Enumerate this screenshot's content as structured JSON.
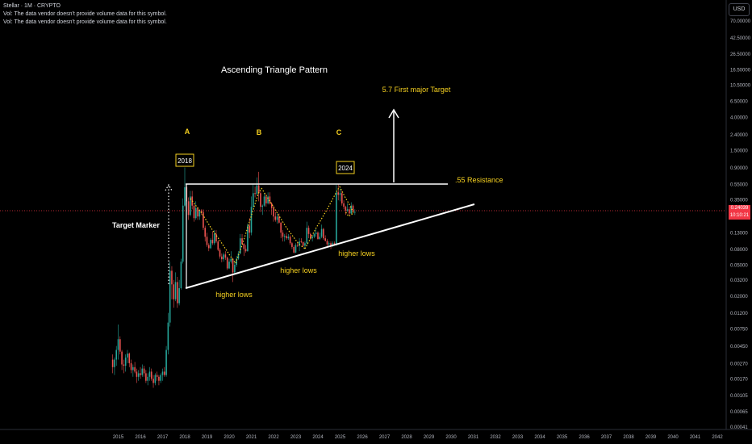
{
  "header": {
    "symbol_line": "Stellar · 1M · CRYPTO",
    "vol_note_1": "Vol: The data vendor doesn't provide volume data for this symbol.",
    "vol_note_2": "Vol: The data vendor doesn't provide volume data for this symbol."
  },
  "price_scale": {
    "currency": "USD",
    "ticks": [
      "70.00000",
      "42.50000",
      "26.50000",
      "16.50000",
      "10.50000",
      "6.50000",
      "4.00000",
      "2.40000",
      "1.50000",
      "0.90000",
      "0.55000",
      "0.35000",
      "0.13000",
      "0.08000",
      "0.05000",
      "0.03200",
      "0.02000",
      "0.01200",
      "0.00750",
      "0.00450",
      "0.00270",
      "0.00170",
      "0.00105",
      "0.00065",
      "0.00041"
    ],
    "current_price": "0.24039",
    "countdown": "10:10:21"
  },
  "time_axis": {
    "years": [
      "2015",
      "2016",
      "2017",
      "2018",
      "2019",
      "2020",
      "2021",
      "2022",
      "2023",
      "2024",
      "2025",
      "2026",
      "2027",
      "2028",
      "2029",
      "2030",
      "2031",
      "2032",
      "2033",
      "2034",
      "2035",
      "2036",
      "2037",
      "2038",
      "2039",
      "2040",
      "2041",
      "2042"
    ]
  },
  "annotations": {
    "title": "Ascending Triangle Pattern",
    "target_label": "5.7 First major Target",
    "resistance_label": ".55 Resistance",
    "target_marker_label": "Target Marker",
    "peak_a": "A",
    "peak_b": "B",
    "peak_c": "C",
    "year_box_1": "2018",
    "year_box_2": "2024",
    "higher_lows_1": "higher lows",
    "higher_lows_2": "higher lows",
    "higher_lows_3": "higher lows"
  },
  "colors": {
    "up": "#26a69a",
    "down": "#ef5350",
    "annotation_text": "#f5d020",
    "trendline": "#ffffff",
    "price_line": "#f23645"
  },
  "chart_data": {
    "type": "candlestick",
    "symbol": "Stellar",
    "interval": "1M",
    "y_scale": "log",
    "ylim": [
      0.00041,
      70
    ],
    "x_range": [
      "2015-01",
      "2042-12"
    ],
    "current_price": 0.24039,
    "trendlines": [
      {
        "label": ".55 Resistance",
        "from": {
          "x": "2018-01",
          "y": 0.55
        },
        "to": {
          "x": "2031-01",
          "y": 0.55
        }
      },
      {
        "label": "higher lows",
        "from": {
          "x": "2018-01",
          "y": 0.025
        },
        "to": {
          "x": "2031-01",
          "y": 0.38
        }
      }
    ],
    "peaks": [
      {
        "label": "A",
        "x": "2018-01",
        "y": 0.9
      },
      {
        "label": "B",
        "x": "2021-05",
        "y": 0.79
      },
      {
        "label": "C",
        "x": "2024-12",
        "y": 0.55
      }
    ],
    "target": {
      "label": "5.7 First major Target",
      "y": 5.7
    },
    "candles": [
      {
        "x": "2014-10",
        "o": 0.003,
        "h": 0.0035,
        "l": 0.002,
        "c": 0.0024
      },
      {
        "x": "2014-11",
        "o": 0.0024,
        "h": 0.0032,
        "l": 0.0019,
        "c": 0.003
      },
      {
        "x": "2014-12",
        "o": 0.003,
        "h": 0.0045,
        "l": 0.0025,
        "c": 0.004
      },
      {
        "x": "2015-01",
        "o": 0.004,
        "h": 0.0085,
        "l": 0.003,
        "c": 0.0055
      },
      {
        "x": "2015-02",
        "o": 0.0055,
        "h": 0.006,
        "l": 0.0035,
        "c": 0.0038
      },
      {
        "x": "2015-03",
        "o": 0.0038,
        "h": 0.004,
        "l": 0.0022,
        "c": 0.0026
      },
      {
        "x": "2015-04",
        "o": 0.0026,
        "h": 0.003,
        "l": 0.002,
        "c": 0.0025
      },
      {
        "x": "2015-05",
        "o": 0.0025,
        "h": 0.0035,
        "l": 0.0021,
        "c": 0.0032
      },
      {
        "x": "2015-06",
        "o": 0.0032,
        "h": 0.004,
        "l": 0.0027,
        "c": 0.0036
      },
      {
        "x": "2015-07",
        "o": 0.0036,
        "h": 0.0037,
        "l": 0.0024,
        "c": 0.0027
      },
      {
        "x": "2015-08",
        "o": 0.0027,
        "h": 0.003,
        "l": 0.002,
        "c": 0.0022
      },
      {
        "x": "2015-09",
        "o": 0.0022,
        "h": 0.0026,
        "l": 0.0018,
        "c": 0.0024
      },
      {
        "x": "2015-10",
        "o": 0.0024,
        "h": 0.0028,
        "l": 0.002,
        "c": 0.0021
      },
      {
        "x": "2015-11",
        "o": 0.0021,
        "h": 0.0023,
        "l": 0.0015,
        "c": 0.0018
      },
      {
        "x": "2015-12",
        "o": 0.0018,
        "h": 0.0022,
        "l": 0.0016,
        "c": 0.002
      },
      {
        "x": "2016-01",
        "o": 0.002,
        "h": 0.0024,
        "l": 0.0017,
        "c": 0.0019
      },
      {
        "x": "2016-02",
        "o": 0.0019,
        "h": 0.0026,
        "l": 0.0018,
        "c": 0.0023
      },
      {
        "x": "2016-03",
        "o": 0.0023,
        "h": 0.0025,
        "l": 0.0018,
        "c": 0.002
      },
      {
        "x": "2016-04",
        "o": 0.002,
        "h": 0.0022,
        "l": 0.0015,
        "c": 0.0016
      },
      {
        "x": "2016-05",
        "o": 0.0016,
        "h": 0.002,
        "l": 0.0014,
        "c": 0.0018
      },
      {
        "x": "2016-06",
        "o": 0.0018,
        "h": 0.0024,
        "l": 0.0016,
        "c": 0.0021
      },
      {
        "x": "2016-07",
        "o": 0.0021,
        "h": 0.0023,
        "l": 0.0016,
        "c": 0.0017
      },
      {
        "x": "2016-08",
        "o": 0.0017,
        "h": 0.0019,
        "l": 0.0013,
        "c": 0.0015
      },
      {
        "x": "2016-09",
        "o": 0.0015,
        "h": 0.002,
        "l": 0.0014,
        "c": 0.0019
      },
      {
        "x": "2016-10",
        "o": 0.0019,
        "h": 0.0021,
        "l": 0.0016,
        "c": 0.0018
      },
      {
        "x": "2016-11",
        "o": 0.0018,
        "h": 0.0019,
        "l": 0.0014,
        "c": 0.0016
      },
      {
        "x": "2016-12",
        "o": 0.0016,
        "h": 0.002,
        "l": 0.0015,
        "c": 0.0019
      },
      {
        "x": "2017-01",
        "o": 0.0019,
        "h": 0.0023,
        "l": 0.0016,
        "c": 0.0021
      },
      {
        "x": "2017-02",
        "o": 0.0021,
        "h": 0.0024,
        "l": 0.0018,
        "c": 0.0019
      },
      {
        "x": "2017-03",
        "o": 0.0019,
        "h": 0.0045,
        "l": 0.0018,
        "c": 0.004
      },
      {
        "x": "2017-04",
        "o": 0.004,
        "h": 0.012,
        "l": 0.0035,
        "c": 0.009
      },
      {
        "x": "2017-05",
        "o": 0.009,
        "h": 0.055,
        "l": 0.008,
        "c": 0.042
      },
      {
        "x": "2017-06",
        "o": 0.042,
        "h": 0.048,
        "l": 0.018,
        "c": 0.028
      },
      {
        "x": "2017-07",
        "o": 0.028,
        "h": 0.032,
        "l": 0.014,
        "c": 0.018
      },
      {
        "x": "2017-08",
        "o": 0.018,
        "h": 0.04,
        "l": 0.017,
        "c": 0.03
      },
      {
        "x": "2017-09",
        "o": 0.03,
        "h": 0.035,
        "l": 0.014,
        "c": 0.016
      },
      {
        "x": "2017-10",
        "o": 0.016,
        "h": 0.032,
        "l": 0.015,
        "c": 0.025
      },
      {
        "x": "2017-11",
        "o": 0.025,
        "h": 0.06,
        "l": 0.024,
        "c": 0.055
      },
      {
        "x": "2017-12",
        "o": 0.055,
        "h": 0.36,
        "l": 0.052,
        "c": 0.29
      },
      {
        "x": "2018-01",
        "o": 0.29,
        "h": 0.9,
        "l": 0.28,
        "c": 0.5
      },
      {
        "x": "2018-02",
        "o": 0.5,
        "h": 0.54,
        "l": 0.3,
        "c": 0.33
      },
      {
        "x": "2018-03",
        "o": 0.33,
        "h": 0.37,
        "l": 0.19,
        "c": 0.22
      },
      {
        "x": "2018-04",
        "o": 0.22,
        "h": 0.45,
        "l": 0.21,
        "c": 0.38
      },
      {
        "x": "2018-05",
        "o": 0.38,
        "h": 0.45,
        "l": 0.26,
        "c": 0.29
      },
      {
        "x": "2018-06",
        "o": 0.29,
        "h": 0.31,
        "l": 0.18,
        "c": 0.2
      },
      {
        "x": "2018-07",
        "o": 0.2,
        "h": 0.33,
        "l": 0.19,
        "c": 0.27
      },
      {
        "x": "2018-08",
        "o": 0.27,
        "h": 0.28,
        "l": 0.19,
        "c": 0.21
      },
      {
        "x": "2018-09",
        "o": 0.21,
        "h": 0.26,
        "l": 0.19,
        "c": 0.25
      },
      {
        "x": "2018-10",
        "o": 0.25,
        "h": 0.26,
        "l": 0.22,
        "c": 0.24
      },
      {
        "x": "2018-11",
        "o": 0.24,
        "h": 0.26,
        "l": 0.14,
        "c": 0.15
      },
      {
        "x": "2018-12",
        "o": 0.15,
        "h": 0.16,
        "l": 0.1,
        "c": 0.115
      },
      {
        "x": "2019-01",
        "o": 0.115,
        "h": 0.13,
        "l": 0.085,
        "c": 0.09
      },
      {
        "x": "2019-02",
        "o": 0.09,
        "h": 0.095,
        "l": 0.075,
        "c": 0.082
      },
      {
        "x": "2019-03",
        "o": 0.082,
        "h": 0.11,
        "l": 0.08,
        "c": 0.105
      },
      {
        "x": "2019-04",
        "o": 0.105,
        "h": 0.135,
        "l": 0.09,
        "c": 0.095
      },
      {
        "x": "2019-05",
        "o": 0.095,
        "h": 0.14,
        "l": 0.09,
        "c": 0.125
      },
      {
        "x": "2019-06",
        "o": 0.125,
        "h": 0.14,
        "l": 0.095,
        "c": 0.1
      },
      {
        "x": "2019-07",
        "o": 0.1,
        "h": 0.105,
        "l": 0.075,
        "c": 0.078
      },
      {
        "x": "2019-08",
        "o": 0.078,
        "h": 0.082,
        "l": 0.06,
        "c": 0.064
      },
      {
        "x": "2019-09",
        "o": 0.064,
        "h": 0.07,
        "l": 0.054,
        "c": 0.059
      },
      {
        "x": "2019-10",
        "o": 0.059,
        "h": 0.072,
        "l": 0.055,
        "c": 0.068
      },
      {
        "x": "2019-11",
        "o": 0.068,
        "h": 0.075,
        "l": 0.058,
        "c": 0.062
      },
      {
        "x": "2019-12",
        "o": 0.062,
        "h": 0.064,
        "l": 0.043,
        "c": 0.045
      },
      {
        "x": "2020-01",
        "o": 0.045,
        "h": 0.06,
        "l": 0.044,
        "c": 0.055
      },
      {
        "x": "2020-02",
        "o": 0.055,
        "h": 0.075,
        "l": 0.052,
        "c": 0.06
      },
      {
        "x": "2020-03",
        "o": 0.06,
        "h": 0.062,
        "l": 0.03,
        "c": 0.04
      },
      {
        "x": "2020-04",
        "o": 0.04,
        "h": 0.055,
        "l": 0.038,
        "c": 0.05
      },
      {
        "x": "2020-05",
        "o": 0.05,
        "h": 0.065,
        "l": 0.047,
        "c": 0.06
      },
      {
        "x": "2020-06",
        "o": 0.06,
        "h": 0.075,
        "l": 0.058,
        "c": 0.07
      },
      {
        "x": "2020-07",
        "o": 0.07,
        "h": 0.125,
        "l": 0.068,
        "c": 0.11
      },
      {
        "x": "2020-08",
        "o": 0.11,
        "h": 0.125,
        "l": 0.09,
        "c": 0.093
      },
      {
        "x": "2020-09",
        "o": 0.093,
        "h": 0.095,
        "l": 0.065,
        "c": 0.08
      },
      {
        "x": "2020-10",
        "o": 0.08,
        "h": 0.09,
        "l": 0.072,
        "c": 0.075
      },
      {
        "x": "2020-11",
        "o": 0.075,
        "h": 0.17,
        "l": 0.074,
        "c": 0.16
      },
      {
        "x": "2020-12",
        "o": 0.16,
        "h": 0.2,
        "l": 0.11,
        "c": 0.13
      },
      {
        "x": "2021-01",
        "o": 0.13,
        "h": 0.38,
        "l": 0.12,
        "c": 0.28
      },
      {
        "x": "2021-02",
        "o": 0.28,
        "h": 0.54,
        "l": 0.27,
        "c": 0.42
      },
      {
        "x": "2021-03",
        "o": 0.42,
        "h": 0.51,
        "l": 0.37,
        "c": 0.41
      },
      {
        "x": "2021-04",
        "o": 0.41,
        "h": 0.67,
        "l": 0.39,
        "c": 0.53
      },
      {
        "x": "2021-05",
        "o": 0.53,
        "h": 0.79,
        "l": 0.33,
        "c": 0.42
      },
      {
        "x": "2021-06",
        "o": 0.42,
        "h": 0.45,
        "l": 0.24,
        "c": 0.28
      },
      {
        "x": "2021-07",
        "o": 0.28,
        "h": 0.3,
        "l": 0.22,
        "c": 0.29
      },
      {
        "x": "2021-08",
        "o": 0.29,
        "h": 0.42,
        "l": 0.28,
        "c": 0.38
      },
      {
        "x": "2021-09",
        "o": 0.38,
        "h": 0.41,
        "l": 0.28,
        "c": 0.31
      },
      {
        "x": "2021-10",
        "o": 0.31,
        "h": 0.43,
        "l": 0.3,
        "c": 0.38
      },
      {
        "x": "2021-11",
        "o": 0.38,
        "h": 0.43,
        "l": 0.3,
        "c": 0.31
      },
      {
        "x": "2021-12",
        "o": 0.31,
        "h": 0.32,
        "l": 0.22,
        "c": 0.27
      },
      {
        "x": "2022-01",
        "o": 0.27,
        "h": 0.29,
        "l": 0.18,
        "c": 0.21
      },
      {
        "x": "2022-02",
        "o": 0.21,
        "h": 0.24,
        "l": 0.18,
        "c": 0.19
      },
      {
        "x": "2022-03",
        "o": 0.19,
        "h": 0.23,
        "l": 0.17,
        "c": 0.21
      },
      {
        "x": "2022-04",
        "o": 0.21,
        "h": 0.23,
        "l": 0.17,
        "c": 0.175
      },
      {
        "x": "2022-05",
        "o": 0.175,
        "h": 0.18,
        "l": 0.11,
        "c": 0.13
      },
      {
        "x": "2022-06",
        "o": 0.13,
        "h": 0.14,
        "l": 0.1,
        "c": 0.115
      },
      {
        "x": "2022-07",
        "o": 0.115,
        "h": 0.125,
        "l": 0.1,
        "c": 0.118
      },
      {
        "x": "2022-08",
        "o": 0.118,
        "h": 0.13,
        "l": 0.105,
        "c": 0.11
      },
      {
        "x": "2022-09",
        "o": 0.11,
        "h": 0.125,
        "l": 0.105,
        "c": 0.115
      },
      {
        "x": "2022-10",
        "o": 0.115,
        "h": 0.12,
        "l": 0.09,
        "c": 0.095
      },
      {
        "x": "2022-11",
        "o": 0.095,
        "h": 0.098,
        "l": 0.08,
        "c": 0.085
      },
      {
        "x": "2022-12",
        "o": 0.085,
        "h": 0.09,
        "l": 0.07,
        "c": 0.072
      },
      {
        "x": "2023-01",
        "o": 0.072,
        "h": 0.095,
        "l": 0.071,
        "c": 0.09
      },
      {
        "x": "2023-02",
        "o": 0.09,
        "h": 0.1,
        "l": 0.085,
        "c": 0.088
      },
      {
        "x": "2023-03",
        "o": 0.088,
        "h": 0.11,
        "l": 0.075,
        "c": 0.1
      },
      {
        "x": "2023-04",
        "o": 0.1,
        "h": 0.11,
        "l": 0.095,
        "c": 0.098
      },
      {
        "x": "2023-05",
        "o": 0.098,
        "h": 0.1,
        "l": 0.085,
        "c": 0.088
      },
      {
        "x": "2023-06",
        "o": 0.088,
        "h": 0.1,
        "l": 0.08,
        "c": 0.095
      },
      {
        "x": "2023-07",
        "o": 0.095,
        "h": 0.18,
        "l": 0.09,
        "c": 0.15
      },
      {
        "x": "2023-08",
        "o": 0.15,
        "h": 0.16,
        "l": 0.11,
        "c": 0.125
      },
      {
        "x": "2023-09",
        "o": 0.125,
        "h": 0.13,
        "l": 0.105,
        "c": 0.11
      },
      {
        "x": "2023-10",
        "o": 0.11,
        "h": 0.12,
        "l": 0.1,
        "c": 0.115
      },
      {
        "x": "2023-11",
        "o": 0.115,
        "h": 0.13,
        "l": 0.11,
        "c": 0.125
      },
      {
        "x": "2023-12",
        "o": 0.125,
        "h": 0.145,
        "l": 0.115,
        "c": 0.13
      },
      {
        "x": "2024-01",
        "o": 0.13,
        "h": 0.135,
        "l": 0.105,
        "c": 0.108
      },
      {
        "x": "2024-02",
        "o": 0.108,
        "h": 0.13,
        "l": 0.105,
        "c": 0.115
      },
      {
        "x": "2024-03",
        "o": 0.115,
        "h": 0.165,
        "l": 0.11,
        "c": 0.145
      },
      {
        "x": "2024-04",
        "o": 0.145,
        "h": 0.15,
        "l": 0.105,
        "c": 0.11
      },
      {
        "x": "2024-05",
        "o": 0.11,
        "h": 0.12,
        "l": 0.1,
        "c": 0.102
      },
      {
        "x": "2024-06",
        "o": 0.102,
        "h": 0.108,
        "l": 0.085,
        "c": 0.092
      },
      {
        "x": "2024-07",
        "o": 0.092,
        "h": 0.1,
        "l": 0.085,
        "c": 0.095
      },
      {
        "x": "2024-08",
        "o": 0.095,
        "h": 0.1,
        "l": 0.08,
        "c": 0.088
      },
      {
        "x": "2024-09",
        "o": 0.088,
        "h": 0.1,
        "l": 0.085,
        "c": 0.095
      },
      {
        "x": "2024-10",
        "o": 0.095,
        "h": 0.1,
        "l": 0.088,
        "c": 0.09
      },
      {
        "x": "2024-11",
        "o": 0.09,
        "h": 0.54,
        "l": 0.088,
        "c": 0.43
      },
      {
        "x": "2024-12",
        "o": 0.43,
        "h": 0.55,
        "l": 0.34,
        "c": 0.4
      },
      {
        "x": "2025-01",
        "o": 0.4,
        "h": 0.48,
        "l": 0.33,
        "c": 0.42
      },
      {
        "x": "2025-02",
        "o": 0.42,
        "h": 0.45,
        "l": 0.29,
        "c": 0.31
      },
      {
        "x": "2025-03",
        "o": 0.31,
        "h": 0.34,
        "l": 0.26,
        "c": 0.28
      },
      {
        "x": "2025-04",
        "o": 0.28,
        "h": 0.29,
        "l": 0.22,
        "c": 0.25
      },
      {
        "x": "2025-05",
        "o": 0.25,
        "h": 0.31,
        "l": 0.24,
        "c": 0.26
      },
      {
        "x": "2025-06",
        "o": 0.26,
        "h": 0.28,
        "l": 0.22,
        "c": 0.23
      },
      {
        "x": "2025-07",
        "o": 0.23,
        "h": 0.32,
        "l": 0.225,
        "c": 0.29
      },
      {
        "x": "2025-08",
        "o": 0.29,
        "h": 0.3,
        "l": 0.23,
        "c": 0.24
      },
      {
        "x": "2025-09",
        "o": 0.24,
        "h": 0.26,
        "l": 0.22,
        "c": 0.24
      }
    ]
  }
}
